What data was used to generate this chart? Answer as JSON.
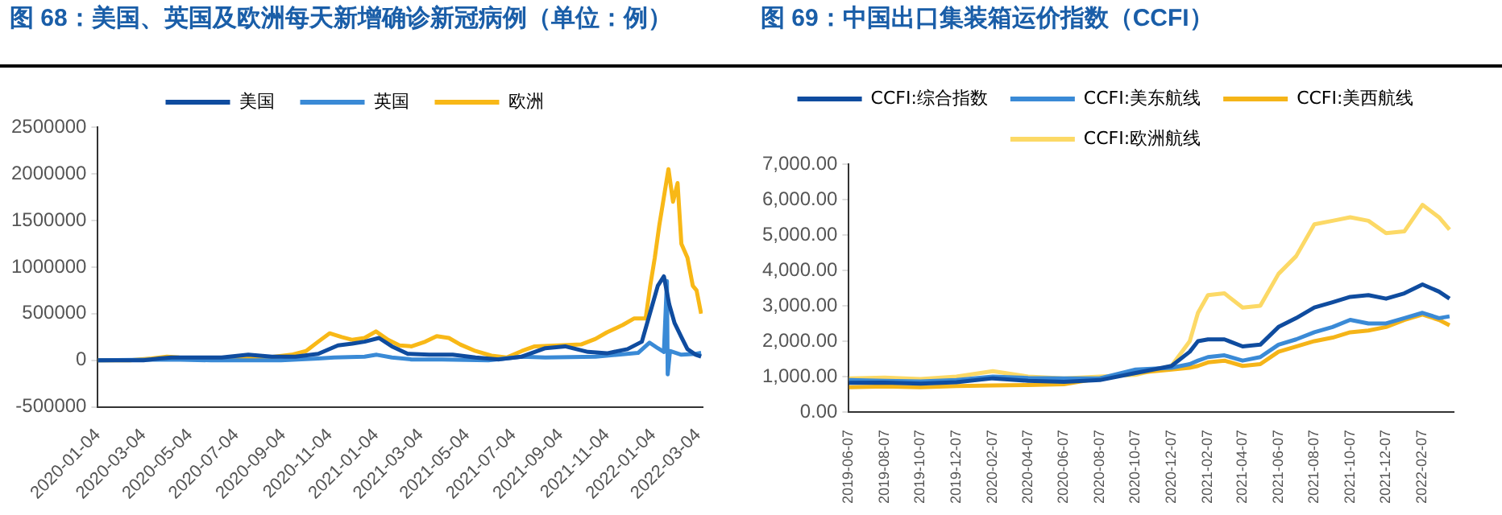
{
  "chart_data": [
    {
      "type": "line",
      "title": "图 68：美国、英国及欧洲每天新增确诊新冠病例（单位：例）",
      "legend": "top",
      "grid": false,
      "marker": "none",
      "line_style": "solid",
      "xlim": [
        "2020-01-04",
        "2022-03-10"
      ],
      "xticks": [
        "2020-01-04",
        "2020-03-04",
        "2020-05-04",
        "2020-07-04",
        "2020-09-04",
        "2020-11-04",
        "2021-01-04",
        "2021-03-04",
        "2021-05-04",
        "2021-07-04",
        "2021-09-04",
        "2021-11-04",
        "2022-01-04",
        "2022-03-04"
      ],
      "ylim": [
        -500000,
        2500000
      ],
      "yticks": [
        -500000,
        0,
        500000,
        1000000,
        1500000,
        2000000,
        2500000
      ],
      "series": [
        {
          "name": "美国",
          "color": "#0f4c9f",
          "x": [
            "2020-01-04",
            "2020-03-04",
            "2020-03-25",
            "2020-04-10",
            "2020-05-15",
            "2020-06-15",
            "2020-07-20",
            "2020-08-20",
            "2020-09-20",
            "2020-10-20",
            "2020-11-15",
            "2020-12-04",
            "2020-12-20",
            "2021-01-08",
            "2021-01-25",
            "2021-02-15",
            "2021-03-15",
            "2021-04-15",
            "2021-05-15",
            "2021-06-15",
            "2021-07-15",
            "2021-08-15",
            "2021-09-10",
            "2021-10-10",
            "2021-11-04",
            "2021-12-01",
            "2021-12-20",
            "2022-01-03",
            "2022-01-10",
            "2022-01-18",
            "2022-01-25",
            "2022-02-01",
            "2022-02-10",
            "2022-02-18",
            "2022-03-01",
            "2022-03-08"
          ],
          "values": [
            0,
            0,
            20000,
            30000,
            30000,
            30000,
            60000,
            40000,
            40000,
            70000,
            160000,
            180000,
            200000,
            240000,
            150000,
            70000,
            60000,
            60000,
            30000,
            10000,
            40000,
            130000,
            150000,
            90000,
            75000,
            120000,
            200000,
            600000,
            800000,
            900000,
            600000,
            400000,
            250000,
            120000,
            60000,
            40000
          ]
        },
        {
          "name": "英国",
          "color": "#3a8ad6",
          "x": [
            "2020-01-04",
            "2020-04-10",
            "2020-06-01",
            "2020-09-01",
            "2020-10-20",
            "2020-11-10",
            "2020-12-20",
            "2021-01-05",
            "2021-01-25",
            "2021-02-20",
            "2021-04-01",
            "2021-06-01",
            "2021-07-15",
            "2021-08-15",
            "2021-10-20",
            "2021-12-15",
            "2021-12-30",
            "2022-01-10",
            "2022-01-18",
            "2022-01-22",
            "2022-01-23",
            "2022-01-26",
            "2022-02-10",
            "2022-03-01",
            "2022-03-08"
          ],
          "values": [
            0,
            10000,
            0,
            0,
            20000,
            30000,
            40000,
            60000,
            30000,
            10000,
            10000,
            0,
            40000,
            30000,
            40000,
            80000,
            190000,
            130000,
            90000,
            850000,
            -150000,
            100000,
            60000,
            70000,
            80000
          ]
        },
        {
          "name": "欧洲",
          "color": "#f8b817",
          "x": [
            "2020-01-04",
            "2020-02-15",
            "2020-03-15",
            "2020-04-04",
            "2020-04-20",
            "2020-05-15",
            "2020-06-15",
            "2020-07-15",
            "2020-08-15",
            "2020-09-15",
            "2020-10-04",
            "2020-10-20",
            "2020-11-04",
            "2020-11-20",
            "2020-12-04",
            "2020-12-20",
            "2021-01-04",
            "2021-01-20",
            "2021-02-04",
            "2021-02-20",
            "2021-03-10",
            "2021-03-25",
            "2021-04-10",
            "2021-04-25",
            "2021-05-15",
            "2021-06-05",
            "2021-06-25",
            "2021-07-15",
            "2021-08-01",
            "2021-09-01",
            "2021-10-01",
            "2021-10-20",
            "2021-11-04",
            "2021-11-25",
            "2021-12-10",
            "2021-12-25",
            "2021-12-31",
            "2022-01-06",
            "2022-01-12",
            "2022-01-18",
            "2022-01-24",
            "2022-01-30",
            "2022-02-05",
            "2022-02-10",
            "2022-02-18",
            "2022-02-25",
            "2022-03-02",
            "2022-03-08"
          ],
          "values": [
            0,
            0,
            20000,
            40000,
            30000,
            20000,
            10000,
            20000,
            30000,
            60000,
            100000,
            200000,
            290000,
            250000,
            220000,
            240000,
            310000,
            220000,
            160000,
            150000,
            200000,
            260000,
            240000,
            170000,
            100000,
            50000,
            30000,
            100000,
            150000,
            160000,
            170000,
            230000,
            300000,
            380000,
            450000,
            450000,
            800000,
            1100000,
            1450000,
            1750000,
            2050000,
            1700000,
            1900000,
            1250000,
            1100000,
            800000,
            750000,
            500000
          ]
        }
      ]
    },
    {
      "type": "line",
      "title": "图 69：中国出口集装箱运价指数（CCFI）",
      "legend": "top",
      "grid": false,
      "marker": "none",
      "line_style": "solid",
      "xlim": [
        "2019-06-07",
        "2022-04-01"
      ],
      "xticks": [
        "2019-06-07",
        "2019-08-07",
        "2019-10-07",
        "2019-12-07",
        "2020-02-07",
        "2020-04-07",
        "2020-06-07",
        "2020-08-07",
        "2020-10-07",
        "2020-12-07",
        "2021-02-07",
        "2021-04-07",
        "2021-06-07",
        "2021-08-07",
        "2021-10-07",
        "2021-12-07",
        "2022-02-07"
      ],
      "ylim": [
        0,
        7000
      ],
      "yticks": [
        {
          "value": 0,
          "label": "0.00"
        },
        {
          "value": 1000,
          "label": "1,000.00"
        },
        {
          "value": 2000,
          "label": "2,000.00"
        },
        {
          "value": 3000,
          "label": "3,000.00"
        },
        {
          "value": 4000,
          "label": "4,000.00"
        },
        {
          "value": 5000,
          "label": "5,000.00"
        },
        {
          "value": 6000,
          "label": "6,000.00"
        },
        {
          "value": 7000,
          "label": "7,000.00"
        }
      ],
      "x": [
        "2019-06-07",
        "2019-08-07",
        "2019-10-07",
        "2019-12-07",
        "2020-02-07",
        "2020-04-07",
        "2020-06-07",
        "2020-08-07",
        "2020-10-07",
        "2020-12-07",
        "2021-01-07",
        "2021-01-21",
        "2021-02-07",
        "2021-03-07",
        "2021-04-07",
        "2021-05-07",
        "2021-06-07",
        "2021-07-07",
        "2021-08-07",
        "2021-09-07",
        "2021-10-07",
        "2021-11-07",
        "2021-12-07",
        "2022-01-07",
        "2022-02-07",
        "2022-03-07",
        "2022-03-25"
      ],
      "series": [
        {
          "name": "CCFI:综合指数",
          "color": "#0f4c9f",
          "values": [
            820,
            830,
            800,
            840,
            950,
            880,
            850,
            900,
            1100,
            1300,
            1700,
            2000,
            2050,
            2050,
            1850,
            1900,
            2400,
            2650,
            2950,
            3100,
            3250,
            3300,
            3200,
            3350,
            3600,
            3400,
            3200
          ]
        },
        {
          "name": "CCFI:美东航线",
          "color": "#3a8ad6",
          "values": [
            900,
            880,
            860,
            900,
            1000,
            960,
            950,
            950,
            1200,
            1250,
            1350,
            1450,
            1550,
            1600,
            1450,
            1550,
            1900,
            2050,
            2250,
            2400,
            2600,
            2500,
            2500,
            2650,
            2800,
            2650,
            2700
          ]
        },
        {
          "name": "CCFI:美西航线",
          "color": "#f5b418",
          "values": [
            700,
            720,
            700,
            730,
            750,
            760,
            780,
            950,
            1100,
            1200,
            1250,
            1300,
            1400,
            1450,
            1300,
            1350,
            1700,
            1850,
            2000,
            2100,
            2250,
            2300,
            2400,
            2600,
            2750,
            2600,
            2450
          ]
        },
        {
          "name": "CCFI:欧洲航线",
          "color": "#fcd966",
          "values": [
            950,
            970,
            930,
            1000,
            1150,
            1000,
            950,
            1000,
            1050,
            1300,
            2000,
            2800,
            3300,
            3350,
            2950,
            3000,
            3900,
            4400,
            5300,
            5400,
            5500,
            5400,
            5050,
            5100,
            5850,
            5500,
            5150
          ]
        }
      ]
    }
  ]
}
